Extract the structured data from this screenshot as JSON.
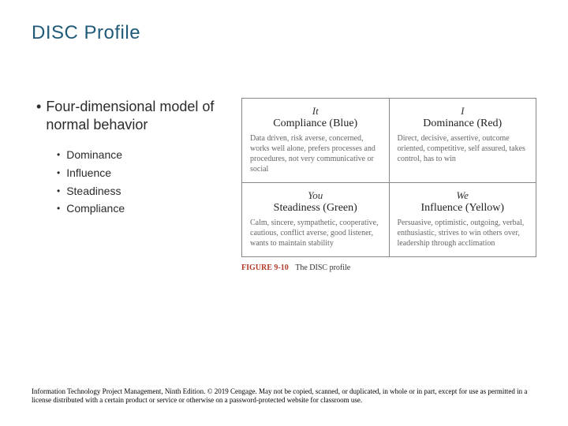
{
  "colors": {
    "title_color": "#1f5b78",
    "text_color": "#2b2b2b",
    "bullet_color": "#2b2b2b",
    "quad_border": "#888888",
    "figure_num_color": "#b33a2a"
  },
  "slide": {
    "title": "DISC Profile",
    "main_bullet": "Four-dimensional model of normal behavior",
    "sub_bullets": [
      "Dominance",
      "Influence",
      "Steadiness",
      "Compliance"
    ]
  },
  "disc": {
    "type": "infographic",
    "layout": "2x2-grid",
    "quadrants": [
      {
        "pronoun": "It",
        "title": "Compliance (Blue)",
        "desc": "Data driven, risk averse, concerned, works well alone, prefers processes and procedures, not very communicative or social"
      },
      {
        "pronoun": "I",
        "title": "Dominance (Red)",
        "desc": "Direct, decisive, assertive, outcome oriented, competitive, self assured, takes control, has to win"
      },
      {
        "pronoun": "You",
        "title": "Steadiness (Green)",
        "desc": "Calm, sincere, sympathetic, cooperative, cautious, conflict averse, good listener, wants to maintain stability"
      },
      {
        "pronoun": "We",
        "title": "Influence (Yellow)",
        "desc": "Persuasive, optimistic, outgoing, verbal, enthusiastic, strives to win others over, leadership through acclimation"
      }
    ],
    "caption_num": "FIGURE 9-10",
    "caption_text": "The DISC profile"
  },
  "footer": "Information Technology Project Management, Ninth Edition. © 2019 Cengage. May not be copied, scanned, or duplicated, in whole or in part, except for use as permitted in a license distributed with a certain product or service or otherwise on a password-protected website for classroom use."
}
